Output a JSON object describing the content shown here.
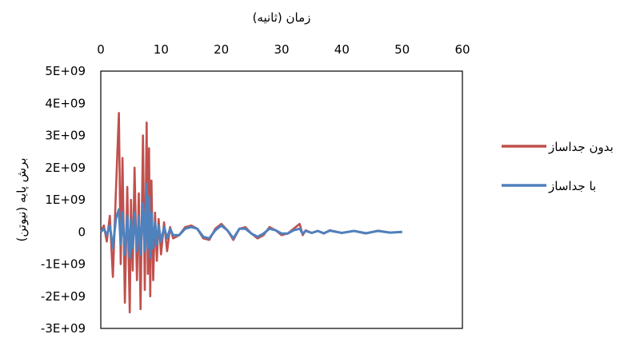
{
  "chart_data": {
    "type": "line",
    "title": "",
    "xlabel": "زمان (ثانیه)",
    "ylabel": "برش پایه (نیوتن)",
    "xlim": [
      0,
      60
    ],
    "ylim": [
      -3000000000.0,
      5000000000.0
    ],
    "x_ticks": [
      "0",
      "10",
      "20",
      "30",
      "40",
      "50",
      "60"
    ],
    "y_ticks": [
      "5E+09",
      "4E+09",
      "3E+09",
      "2E+09",
      "1E+09",
      "0",
      "-1E+09",
      "-2E+09",
      "-3E+09"
    ],
    "x_axis_position": "top",
    "grid": false,
    "legend_position": "right",
    "series": [
      {
        "name": "بدون جداساز",
        "color": "#c0504d",
        "x": [
          0,
          0.5,
          1.0,
          1.5,
          2.0,
          2.5,
          3.0,
          3.3,
          3.6,
          4.0,
          4.4,
          4.8,
          5.0,
          5.3,
          5.6,
          6.0,
          6.3,
          6.6,
          7.0,
          7.3,
          7.6,
          7.8,
          8.0,
          8.2,
          8.4,
          8.7,
          9.0,
          9.3,
          9.6,
          10.0,
          10.5,
          11.0,
          11.5,
          12.0,
          13.0,
          14.0,
          15.0,
          16.0,
          17.0,
          18.0,
          19.0,
          20.0,
          21.0,
          22.0,
          23.0,
          24.0,
          25.0,
          26.0,
          27.0,
          28.0,
          29.0,
          30.0,
          31.0,
          32.0,
          33.0,
          33.5,
          34.0,
          35.0,
          36.0,
          37.0,
          38.0,
          40.0,
          42.0,
          44.0,
          46.0,
          48.0,
          50.0
        ],
        "y": [
          0,
          200000000.0,
          -300000000.0,
          500000000.0,
          -1400000000.0,
          1200000000.0,
          3700000000.0,
          -1000000000.0,
          2300000000.0,
          -2200000000.0,
          1400000000.0,
          -2500000000.0,
          1000000000.0,
          -1200000000.0,
          2000000000.0,
          -1500000000.0,
          1200000000.0,
          -2400000000.0,
          3000000000.0,
          -1800000000.0,
          3400000000.0,
          -1300000000.0,
          2600000000.0,
          -2000000000.0,
          1600000000.0,
          -1500000000.0,
          600000000.0,
          -900000000.0,
          400000000.0,
          -700000000.0,
          300000000.0,
          -600000000.0,
          150000000.0,
          -200000000.0,
          -100000000.0,
          150000000.0,
          200000000.0,
          100000000.0,
          -200000000.0,
          -250000000.0,
          100000000.0,
          250000000.0,
          50000000.0,
          -250000000.0,
          100000000.0,
          150000000.0,
          -50000000.0,
          -200000000.0,
          -100000000.0,
          150000000.0,
          50000000.0,
          -100000000.0,
          -50000000.0,
          100000000.0,
          250000000.0,
          -100000000.0,
          50000000.0,
          -30000000.0,
          30000000.0,
          -50000000.0,
          50000000.0,
          -30000000.0,
          30000000.0,
          -50000000.0,
          40000000.0,
          -20000000.0,
          0
        ]
      },
      {
        "name": "با جداساز",
        "color": "#4f81bd",
        "x": [
          0,
          0.5,
          1.0,
          1.5,
          2.0,
          2.5,
          3.0,
          3.3,
          3.6,
          4.0,
          4.4,
          4.8,
          5.0,
          5.3,
          5.6,
          6.0,
          6.3,
          6.6,
          7.0,
          7.3,
          7.6,
          7.8,
          8.0,
          8.2,
          8.4,
          8.7,
          9.0,
          9.3,
          9.6,
          10.0,
          10.5,
          11.0,
          11.5,
          12.0,
          13.0,
          14.0,
          15.0,
          16.0,
          17.0,
          18.0,
          19.0,
          20.0,
          21.0,
          22.0,
          23.0,
          24.0,
          25.0,
          26.0,
          27.0,
          28.0,
          29.0,
          30.0,
          31.0,
          32.0,
          33.0,
          33.5,
          34.0,
          35.0,
          36.0,
          37.0,
          38.0,
          40.0,
          42.0,
          44.0,
          46.0,
          48.0,
          50.0
        ],
        "y": [
          0,
          100000000.0,
          -100000000.0,
          200000000.0,
          -500000000.0,
          400000000.0,
          700000000.0,
          -400000000.0,
          600000000.0,
          -700000000.0,
          500000000.0,
          -800000000.0,
          400000000.0,
          -500000000.0,
          600000000.0,
          -600000000.0,
          500000000.0,
          -700000000.0,
          900000000.0,
          -600000000.0,
          1500000000.0,
          -500000000.0,
          1100000000.0,
          -800000000.0,
          600000000.0,
          -500000000.0,
          300000000.0,
          -400000000.0,
          200000000.0,
          -300000000.0,
          150000000.0,
          -200000000.0,
          100000000.0,
          -100000000.0,
          -100000000.0,
          100000000.0,
          150000000.0,
          100000000.0,
          -150000000.0,
          -200000000.0,
          50000000.0,
          200000000.0,
          50000000.0,
          -200000000.0,
          100000000.0,
          100000000.0,
          -50000000.0,
          -150000000.0,
          -50000000.0,
          100000000.0,
          50000000.0,
          -50000000.0,
          -50000000.0,
          50000000.0,
          100000000.0,
          -50000000.0,
          30000000.0,
          -30000000.0,
          30000000.0,
          -40000000.0,
          40000000.0,
          -30000000.0,
          30000000.0,
          -40000000.0,
          30000000.0,
          -20000000.0,
          0
        ]
      }
    ]
  }
}
